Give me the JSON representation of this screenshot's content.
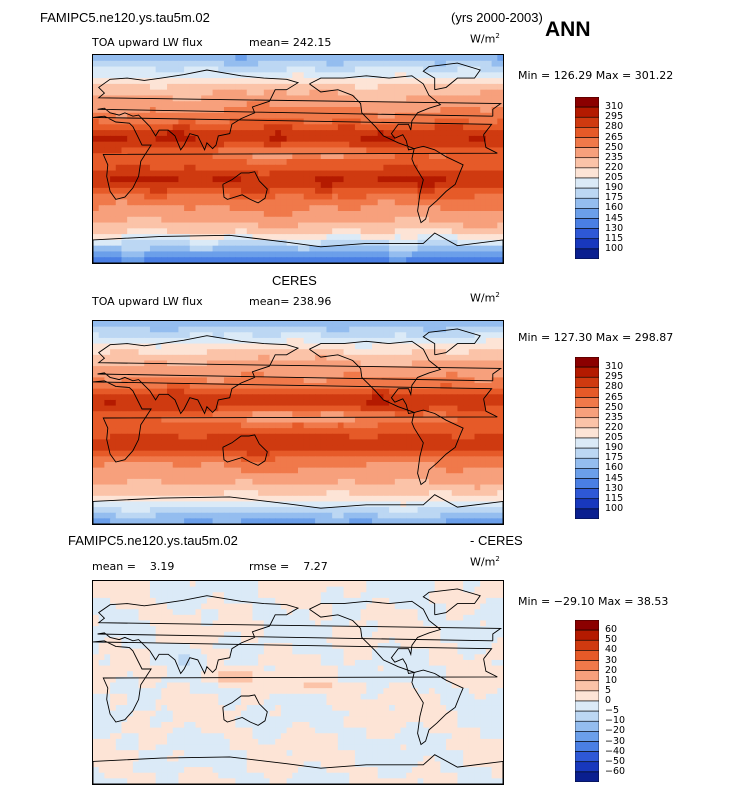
{
  "header": {
    "case_name": "FAMIPC5.ne120.ys.tau5m.02",
    "years": "(yrs 2000-2003)",
    "season": "ANN"
  },
  "chart_data": [
    {
      "type": "heatmap",
      "panel_title": "",
      "field_label": "TOA upward LW flux",
      "mean_label": "mean=",
      "mean_value": "242.15",
      "units": "W/m",
      "units_exp": "2",
      "min_label": "Min =",
      "min_value": "126.29",
      "max_label": "Max =",
      "max_value": "301.22",
      "levels": [
        "310",
        "295",
        "280",
        "265",
        "250",
        "235",
        "220",
        "205",
        "190",
        "175",
        "160",
        "145",
        "130",
        "115",
        "100"
      ],
      "colors": [
        "#8b0000",
        "#b41a00",
        "#cf3a10",
        "#e65a28",
        "#f0794a",
        "#f7a07c",
        "#fbc3a8",
        "#fde4d6",
        "#dbeaf7",
        "#bcd7f3",
        "#94bdef",
        "#6b9fea",
        "#4a7fe4",
        "#2e58d6",
        "#1838bd",
        "#0a1f8f"
      ],
      "trop_strength": 1.0,
      "polar_cold": 1.0
    },
    {
      "type": "heatmap",
      "panel_title": "CERES",
      "field_label": "TOA upward LW flux",
      "mean_label": "mean=",
      "mean_value": "238.96",
      "units": "W/m",
      "units_exp": "2",
      "min_label": "Min =",
      "min_value": "127.30",
      "max_label": "Max =",
      "max_value": "298.87",
      "levels": [
        "310",
        "295",
        "280",
        "265",
        "250",
        "235",
        "220",
        "205",
        "190",
        "175",
        "160",
        "145",
        "130",
        "115",
        "100"
      ],
      "colors": [
        "#8b0000",
        "#b41a00",
        "#cf3a10",
        "#e65a28",
        "#f0794a",
        "#f7a07c",
        "#fbc3a8",
        "#fde4d6",
        "#dbeaf7",
        "#bcd7f3",
        "#94bdef",
        "#6b9fea",
        "#4a7fe4",
        "#2e58d6",
        "#1838bd",
        "#0a1f8f"
      ],
      "trop_strength": 0.95,
      "polar_cold": 0.6
    },
    {
      "type": "heatmap",
      "panel_title_left": "FAMIPC5.ne120.ys.tau5m.02",
      "panel_title_right": "- CERES",
      "mean_label": "mean =",
      "mean_value": "3.19",
      "rmse_label": "rmse =",
      "rmse_value": "7.27",
      "units": "W/m",
      "units_exp": "2",
      "min_label": "Min =",
      "min_value": "−29.10",
      "max_label": "Max =",
      "max_value": "38.53",
      "levels": [
        "60",
        "50",
        "40",
        "30",
        "20",
        "10",
        "5",
        "0",
        "−5",
        "−10",
        "−20",
        "−30",
        "−40",
        "−50",
        "−60"
      ],
      "colors": [
        "#8b0000",
        "#b41a00",
        "#cf3a10",
        "#e65a28",
        "#f0794a",
        "#f7a07c",
        "#fbc3a8",
        "#fde4d6",
        "#dbeaf7",
        "#bcd7f3",
        "#94bdef",
        "#6b9fea",
        "#4a7fe4",
        "#2e58d6",
        "#1838bd",
        "#0a1f8f"
      ]
    }
  ]
}
